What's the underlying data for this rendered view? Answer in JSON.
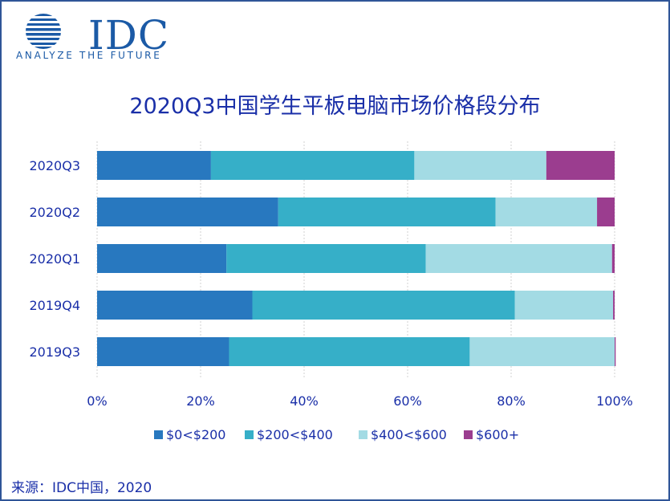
{
  "logo": {
    "brand": "IDC",
    "tagline": "ANALYZE THE FUTURE"
  },
  "chart_data": {
    "type": "bar",
    "orientation": "horizontal",
    "stacked": true,
    "percent": true,
    "title": "2020Q3中国学生平板电脑市场价格段分布",
    "categories": [
      "2020Q3",
      "2020Q2",
      "2020Q1",
      "2019Q4",
      "2019Q3"
    ],
    "series": [
      {
        "name": "$0<$200",
        "color": "#2878bf",
        "values": [
          22,
          35,
          25,
          30,
          25.5
        ]
      },
      {
        "name": "$200<$400",
        "color": "#36afc8",
        "values": [
          39.3,
          42,
          38.5,
          50.7,
          46.5
        ]
      },
      {
        "name": "$400<$600",
        "color": "#a3dbe4",
        "values": [
          25.5,
          19.6,
          36,
          19,
          28
        ]
      },
      {
        "name": "$600+",
        "color": "#9b3d8f",
        "values": [
          13.2,
          3.4,
          0.5,
          0.3,
          0.2
        ]
      }
    ],
    "x_ticks": [
      "0%",
      "20%",
      "40%",
      "60%",
      "80%",
      "100%"
    ],
    "xlim": [
      0,
      100
    ],
    "legend": "bottom",
    "grid": true
  },
  "source_note": "来源：IDC中国，2020"
}
